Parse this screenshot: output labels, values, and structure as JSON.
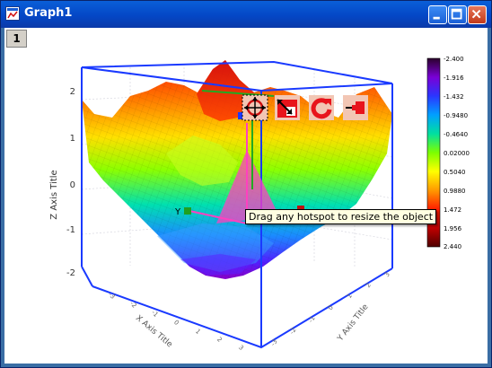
{
  "window": {
    "title": "Graph1",
    "layer_label": "1"
  },
  "tooltip": {
    "text": "Drag any hotspot to resize the object"
  },
  "toolbar": {
    "tools": [
      "move-tool",
      "resize-tool",
      "rotate-tool",
      "pin-tool"
    ],
    "accent": "#ff1a1a"
  },
  "plot": {
    "z_axis_title": "Z Axis Title",
    "x_axis_title": "X Axis Title",
    "y_axis_title": "Y Axis Title",
    "z_ticks": [
      "2",
      "1",
      "0",
      "-1",
      "-2"
    ],
    "x_ticks": [
      "-3",
      "-2",
      "-1",
      "0",
      "1",
      "2",
      "3"
    ],
    "y_ticks": [
      "-3",
      "-2",
      "-1",
      "0",
      "1",
      "2",
      "3"
    ],
    "y_marker_label": "Y",
    "colorscale": {
      "labels": [
        "-2.400",
        "-1.916",
        "-1.432",
        "-0.9480",
        "-0.4640",
        "0.02000",
        "0.5040",
        "0.9880",
        "1.472",
        "1.956",
        "2.440"
      ],
      "colors": [
        "#2b002b",
        "#7a00d6",
        "#2a36ff",
        "#00a0ff",
        "#00e0a0",
        "#7cff00",
        "#ffff00",
        "#ff9a00",
        "#ff2000",
        "#c00000",
        "#500000"
      ]
    }
  }
}
